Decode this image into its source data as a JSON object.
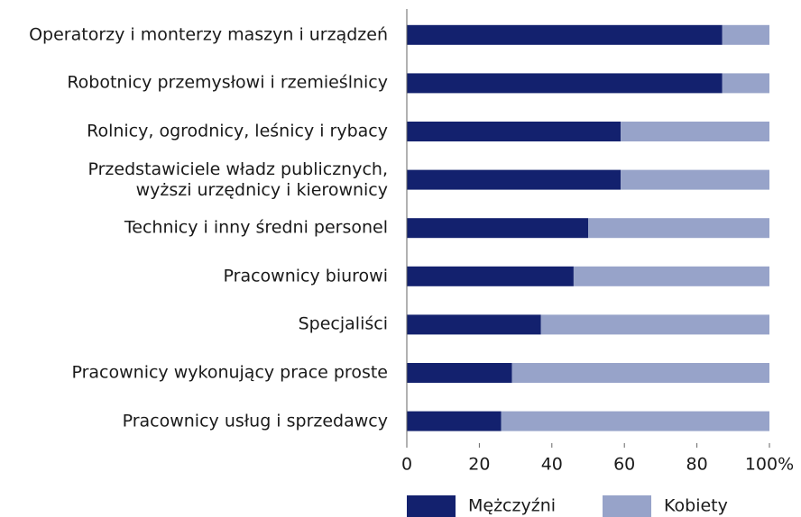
{
  "chart_data": {
    "type": "stacked_barh",
    "categories": [
      "Operatorzy i monterzy maszyn i urządzeń",
      "Robotnicy przemysłowi i rzemieślnicy",
      "Rolnicy, ogrodnicy, leśnicy i rybacy",
      "Przedstawiciele władz publicznych,\nwyższi urzędnicy i kierownicy",
      "Technicy i inny średni personel",
      "Pracownicy biurowi",
      "Specjaliści",
      "Pracownicy wykonujący prace proste",
      "Pracownicy usług i sprzedawcy"
    ],
    "series": [
      {
        "name": "Mężczyźni",
        "color": "#13216e",
        "values": [
          87,
          87,
          59,
          59,
          50,
          46,
          37,
          29,
          26
        ]
      },
      {
        "name": "Kobiety",
        "color": "#97a3c9",
        "values": [
          13,
          13,
          41,
          41,
          50,
          54,
          63,
          71,
          74
        ]
      }
    ],
    "xlim": [
      0,
      100
    ],
    "xticks": [
      0,
      20,
      40,
      60,
      80,
      {
        "value": 100,
        "label": "100%"
      }
    ],
    "legend": "bottom"
  }
}
